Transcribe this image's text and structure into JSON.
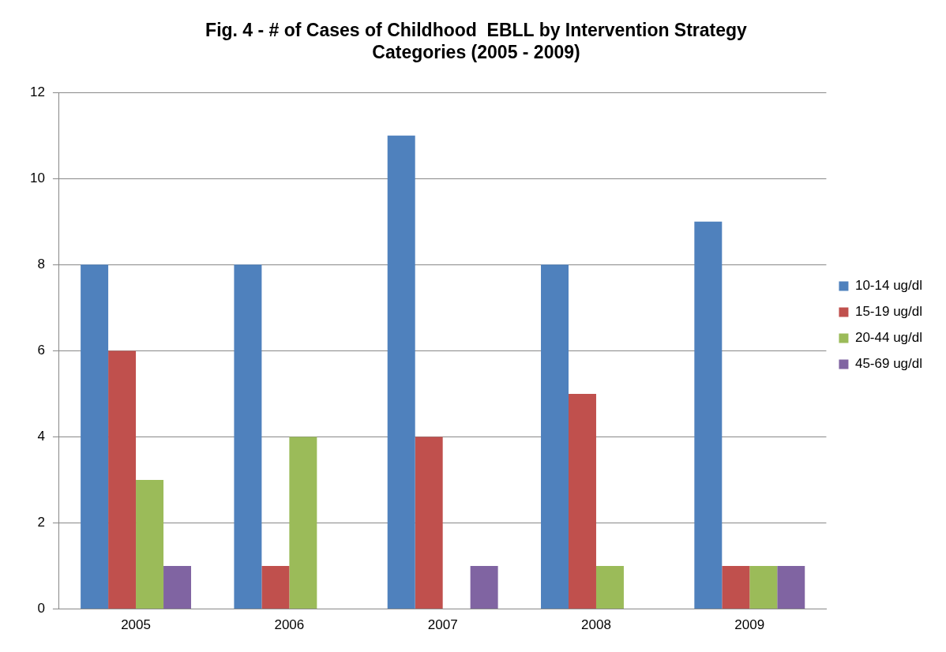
{
  "chart_data": {
    "type": "bar",
    "title": "Fig. 4 - # of Cases of Childhood  EBLL by Intervention Strategy Categories (2005 - 2009)",
    "categories": [
      "2005",
      "2006",
      "2007",
      "2008",
      "2009"
    ],
    "series": [
      {
        "name": "10-14 ug/dl",
        "color": "#4f81bd",
        "values": [
          8,
          8,
          11,
          8,
          9
        ]
      },
      {
        "name": "15-19 ug/dl",
        "color": "#c0504d",
        "values": [
          6,
          1,
          4,
          5,
          1
        ]
      },
      {
        "name": "20-44 ug/dl",
        "color": "#9bbb59",
        "values": [
          3,
          4,
          0,
          1,
          1
        ]
      },
      {
        "name": "45-69 ug/dl",
        "color": "#8064a2",
        "values": [
          1,
          0,
          1,
          0,
          1
        ]
      }
    ],
    "ylim": [
      0,
      12
    ],
    "yticks": [
      0,
      2,
      4,
      6,
      8,
      10,
      12
    ],
    "grid": "y",
    "legend": "right"
  }
}
